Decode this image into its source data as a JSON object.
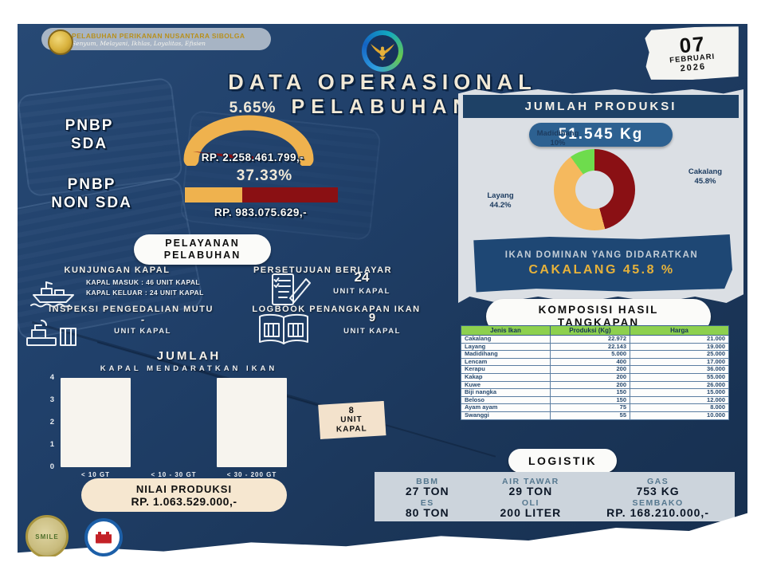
{
  "header": {
    "org_name": "PELABUHAN PERIKANAN NUSANTARA SIBOLGA",
    "org_tagline": "Senyum, Melayani, Ikhlas, Loyalitas, Efisien",
    "date_day": "07",
    "date_month": "FEBRUARI",
    "date_year": "2026",
    "title_line1": "DATA OPERASIONAL",
    "title_line2": "PELABUHAN"
  },
  "pnbp": {
    "sda_label_line1": "PNBP",
    "sda_label_line2": "SDA",
    "sda_pct": "5.65%",
    "sda_value": "RP. 2.258.461.799,-",
    "non_sda_label_line1": "PNBP",
    "non_sda_label_line2": "NON SDA",
    "non_sda_pct": "37.33%",
    "non_sda_fill": 37.33,
    "non_sda_value": "RP. 983.075.629,-"
  },
  "produksi": {
    "title": "JUMLAH PRODUKSI",
    "total": "51.545 Kg",
    "dominant_caption": "IKAN DOMINAN YANG DIDARATKAN",
    "dominant_value": "CAKALANG 45.8 %"
  },
  "chart_data": [
    {
      "type": "pie",
      "subtype": "donut",
      "title": "JUMLAH PRODUKSI",
      "total_label": "51.545 Kg",
      "labels": [
        "Cakalang",
        "Layang",
        "Madidihang"
      ],
      "values": [
        45.8,
        44.2,
        10
      ],
      "colors": [
        "#8a1014",
        "#f5b95e",
        "#6edc4d"
      ],
      "legend_position": "around"
    },
    {
      "type": "bar",
      "title": "JUMLAH KAPAL MENDARATKAN IKAN",
      "categories": [
        "< 10 GT",
        "< 10 - 30 GT",
        "< 30 - 200 GT"
      ],
      "values": [
        4,
        0,
        4
      ],
      "ylim": [
        0,
        4
      ],
      "bar_color": "#f7f4ee",
      "grid": false
    }
  ],
  "pelayanan": {
    "title_line1": "PELAYANAN",
    "title_line2": "PELABUHAN",
    "kunjungan": {
      "label": "KUNJUNGAN KAPAL",
      "masuk": "KAPAL MASUK : 46 UNIT KAPAL",
      "keluar": "KAPAL KELUAR : 24 UNIT KAPAL"
    },
    "persetujuan": {
      "label": "PERSETUJUAN BERLAYAR",
      "value": "24",
      "unit": "UNIT KAPAL"
    },
    "inspeksi": {
      "label": "INSPEKSI PENGEDALIAN MUTU",
      "value": "-",
      "unit": "UNIT KAPAL"
    },
    "logbook": {
      "label": "LOGBOOK PENANGKAPAN IKAN",
      "value": "9",
      "unit": "UNIT KAPAL"
    }
  },
  "kapal_chart": {
    "title_line1": "JUMLAH",
    "title_line2": "KAPAL MENDARATKAN IKAN",
    "badge_line1": "8",
    "badge_line2": "UNIT",
    "badge_line3": "KAPAL"
  },
  "nilai_produksi": {
    "label": "NILAI PRODUKSI",
    "value": "RP. 1.063.529.000,-"
  },
  "komposisi": {
    "title_line1": "KOMPOSISI HASIL",
    "title_line2": "TANGKAPAN",
    "headers": [
      "Jenis Ikan",
      "Produksi (Kg)",
      "Harga"
    ],
    "rows": [
      [
        "Cakalang",
        "22.972",
        "21.000"
      ],
      [
        "Layang",
        "22.143",
        "19.000"
      ],
      [
        "Madidihang",
        "5.000",
        "25.000"
      ],
      [
        "Lencam",
        "400",
        "17.000"
      ],
      [
        "Kerapu",
        "200",
        "36.000"
      ],
      [
        "Kakap",
        "200",
        "55.000"
      ],
      [
        "Kuwe",
        "200",
        "26.000"
      ],
      [
        "Biji nangka",
        "150",
        "15.000"
      ],
      [
        "Beloso",
        "150",
        "12.000"
      ],
      [
        "Ayam ayam",
        "75",
        "8.000"
      ],
      [
        "Swanggi",
        "55",
        "10.000"
      ]
    ]
  },
  "logistik": {
    "title": "LOGISTIK",
    "items": [
      {
        "label": "BBM",
        "value": "27 TON"
      },
      {
        "label": "AIR TAWAR",
        "value": "29 TON"
      },
      {
        "label": "GAS",
        "value": "753 KG"
      },
      {
        "label": "ES",
        "value": "80 TON"
      },
      {
        "label": "OLI",
        "value": "200 LITER"
      },
      {
        "label": "SEMBAKO",
        "value": "RP. 168.210.000,-"
      }
    ]
  },
  "footer_logos": {
    "smile": "SMILE",
    "wbk": "WBK"
  },
  "colors": {
    "background_navy": "#20406a",
    "panel_gray": "#dbdfe4",
    "banner_blue": "#1e4774",
    "pill_blue": "#2d6191",
    "accent_orange": "#efb24e",
    "accent_dark_red": "#8a1013",
    "table_header_green": "#8dd04e",
    "cream": "#f6e7d0",
    "gold": "#c9a227",
    "dominant_yellow": "#e7b23a"
  }
}
